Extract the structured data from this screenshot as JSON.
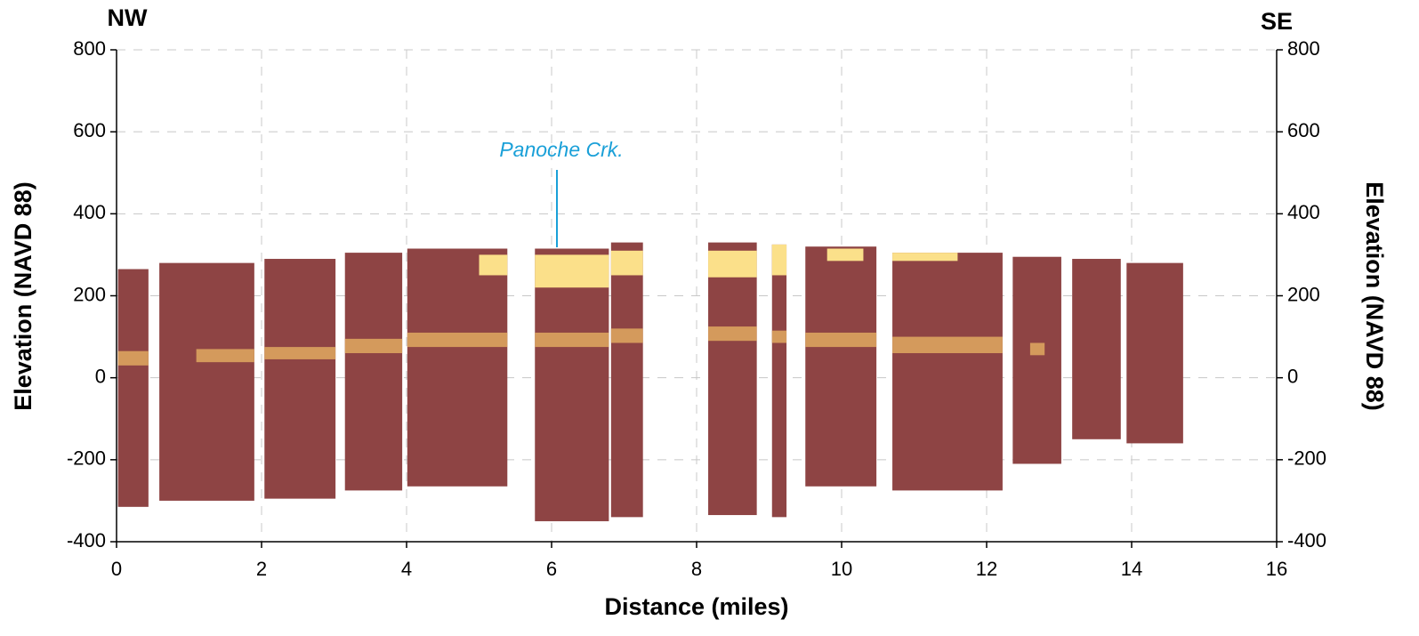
{
  "chart_data": {
    "type": "section",
    "left_label": "NW",
    "right_label": "SE",
    "annotation": "Panoche Crk.",
    "x_label": "Distance (miles)",
    "y_label": "Elevation (NAVD 88)",
    "xlim": [
      0,
      16
    ],
    "xticks": [
      0,
      2,
      4,
      6,
      8,
      10,
      12,
      14,
      16
    ],
    "ylim": [
      -400,
      800
    ],
    "yticks": [
      -400,
      -200,
      0,
      200,
      400,
      600,
      800
    ],
    "y2lim": [
      -400,
      800
    ],
    "y2ticks": [
      -400,
      -200,
      0,
      200,
      400,
      600,
      800
    ],
    "grid": true,
    "layers": [
      {
        "color": "#8e4444",
        "blocks": [
          {
            "x0": 0.02,
            "x1": 0.44,
            "top": 265,
            "bottom": -315
          },
          {
            "x0": 0.59,
            "x1": 1.9,
            "top": 280,
            "bottom": -300
          },
          {
            "x0": 2.04,
            "x1": 3.02,
            "top": 290,
            "bottom": -295
          },
          {
            "x0": 3.15,
            "x1": 3.94,
            "top": 305,
            "bottom": -275
          },
          {
            "x0": 4.01,
            "x1": 5.39,
            "top": 315,
            "bottom": -265
          },
          {
            "x0": 5.77,
            "x1": 6.79,
            "top": 315,
            "bottom": -350
          },
          {
            "x0": 6.82,
            "x1": 7.26,
            "top": 330,
            "bottom": -340
          },
          {
            "x0": 8.16,
            "x1": 8.83,
            "top": 330,
            "bottom": -335
          },
          {
            "x0": 9.04,
            "x1": 9.24,
            "top": 325,
            "bottom": -340
          },
          {
            "x0": 9.5,
            "x1": 10.48,
            "top": 320,
            "bottom": -265
          },
          {
            "x0": 10.7,
            "x1": 12.22,
            "top": 305,
            "bottom": -275
          },
          {
            "x0": 12.36,
            "x1": 13.03,
            "top": 295,
            "bottom": -210
          },
          {
            "x0": 13.18,
            "x1": 13.85,
            "top": 290,
            "bottom": -150
          },
          {
            "x0": 13.93,
            "x1": 14.71,
            "top": 280,
            "bottom": -160
          }
        ]
      },
      {
        "color": "#d49a5c",
        "blocks": [
          {
            "x0": 0.02,
            "x1": 0.44,
            "top": 65,
            "bottom": 30
          },
          {
            "x0": 1.1,
            "x1": 1.9,
            "top": 70,
            "bottom": 38
          },
          {
            "x0": 2.04,
            "x1": 3.02,
            "top": 75,
            "bottom": 45
          },
          {
            "x0": 3.15,
            "x1": 3.94,
            "top": 95,
            "bottom": 60
          },
          {
            "x0": 4.01,
            "x1": 5.39,
            "top": 110,
            "bottom": 75
          },
          {
            "x0": 5.77,
            "x1": 6.79,
            "top": 110,
            "bottom": 75
          },
          {
            "x0": 6.82,
            "x1": 7.26,
            "top": 120,
            "bottom": 85
          },
          {
            "x0": 8.16,
            "x1": 8.83,
            "top": 125,
            "bottom": 90
          },
          {
            "x0": 9.04,
            "x1": 9.24,
            "top": 115,
            "bottom": 85
          },
          {
            "x0": 9.5,
            "x1": 10.48,
            "top": 110,
            "bottom": 75
          },
          {
            "x0": 10.7,
            "x1": 12.22,
            "top": 100,
            "bottom": 60
          },
          {
            "x0": 12.6,
            "x1": 12.8,
            "top": 85,
            "bottom": 55
          }
        ]
      },
      {
        "color": "#fbe08a",
        "blocks": [
          {
            "x0": 5.0,
            "x1": 5.39,
            "top": 300,
            "bottom": 250
          },
          {
            "x0": 5.77,
            "x1": 6.79,
            "top": 300,
            "bottom": 220
          },
          {
            "x0": 6.82,
            "x1": 7.26,
            "top": 310,
            "bottom": 250
          },
          {
            "x0": 8.16,
            "x1": 8.83,
            "top": 310,
            "bottom": 245
          },
          {
            "x0": 9.04,
            "x1": 9.24,
            "top": 325,
            "bottom": 250
          },
          {
            "x0": 9.8,
            "x1": 10.3,
            "top": 315,
            "bottom": 285
          },
          {
            "x0": 10.7,
            "x1": 11.6,
            "top": 305,
            "bottom": 285
          }
        ]
      }
    ]
  }
}
